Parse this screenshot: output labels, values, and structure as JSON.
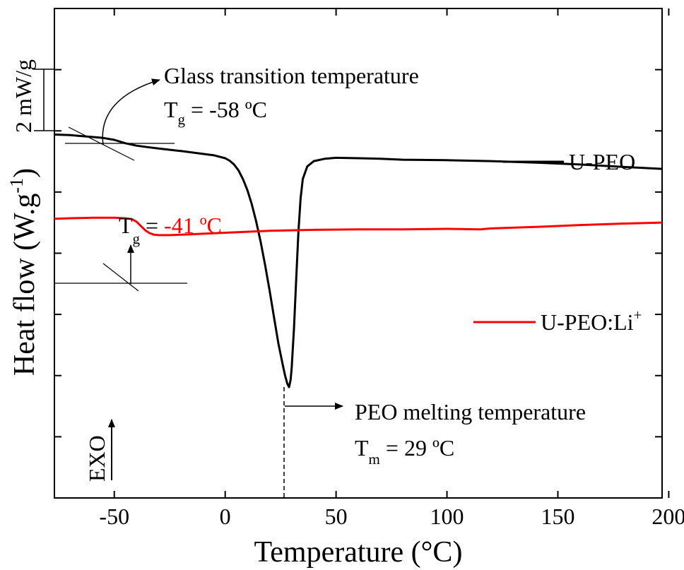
{
  "chart_data": {
    "type": "line",
    "xlabel": "Temperature (°C)",
    "ylabel": {
      "main": "Heat flow (W.g",
      "sup": "-1",
      "close": ")"
    },
    "xlim": [
      -77,
      197
    ],
    "x_ticks": [
      "-50",
      "0",
      "50",
      "100",
      "150",
      "200"
    ],
    "x_tick_values": [
      -50,
      0,
      50,
      100,
      150,
      200
    ],
    "y_ticks_count": 8,
    "y_labels_shown": false,
    "series": [
      {
        "name": "U-PEO",
        "color": "#000000",
        "x": [
          -77,
          -70,
          -60,
          -55,
          -50,
          -45,
          -40,
          -35,
          -30,
          -20,
          -10,
          -5,
          0,
          2,
          4,
          6,
          8,
          10,
          12,
          14,
          16,
          18,
          20,
          22,
          24,
          26,
          27,
          28,
          28.8,
          29.5,
          30,
          31,
          32,
          33,
          34,
          35,
          37,
          40,
          45,
          50,
          60,
          70,
          80,
          100,
          120,
          140,
          160,
          180,
          197
        ],
        "values": [
          -0.8,
          -0.9,
          -1.3,
          -1.5,
          -1.9,
          -2.6,
          -3.1,
          -3.4,
          -3.7,
          -4.2,
          -4.8,
          -5.1,
          -5.7,
          -6.2,
          -7.0,
          -8.2,
          -10.0,
          -12.3,
          -15.2,
          -18.8,
          -23.0,
          -27.8,
          -33.0,
          -38.5,
          -44.0,
          -48.5,
          -50.6,
          -52.3,
          -53.0,
          -51.5,
          -49.0,
          -41.0,
          -31.0,
          -21.0,
          -14.0,
          -10.0,
          -7.4,
          -6.3,
          -5.8,
          -5.6,
          -5.7,
          -5.8,
          -6.0,
          -6.1,
          -6.3,
          -6.6,
          -7.0,
          -7.5,
          -7.9
        ]
      },
      {
        "name": "U-PEO:Li",
        "name_sup": "+",
        "color": "#ff0000",
        "x": [
          -77,
          -70,
          -60,
          -50,
          -45,
          -42,
          -40,
          -38,
          -36,
          -34,
          -32,
          -30,
          -25,
          -15,
          0,
          20,
          40,
          60,
          80,
          100,
          115,
          120,
          140,
          160,
          180,
          197
        ],
        "values": [
          -18.2,
          -18.1,
          -18.0,
          -18.0,
          -18.1,
          -18.3,
          -18.8,
          -19.7,
          -20.6,
          -21.2,
          -21.5,
          -21.6,
          -21.6,
          -21.4,
          -21.1,
          -20.7,
          -20.5,
          -20.4,
          -20.4,
          -20.3,
          -20.4,
          -20.2,
          -19.9,
          -19.5,
          -19.2,
          -19.0
        ]
      }
    ],
    "annotations": {
      "glass_transition_title": "Glass transition temperature",
      "tg1_symbol": "T",
      "tg1_sub": "g",
      "tg1_value": " = -58 ºC",
      "tg2_symbol": "T",
      "tg2_sub": "g",
      "tg2_eq": " = ",
      "tg2_value": "-41 ºC",
      "melting_title": "PEO melting temperature",
      "tm_symbol": "T",
      "tm_sub": "m",
      "tm_value": " = 29 ºC",
      "scale_bar": "2 mW/g",
      "exo": "EXO"
    }
  }
}
